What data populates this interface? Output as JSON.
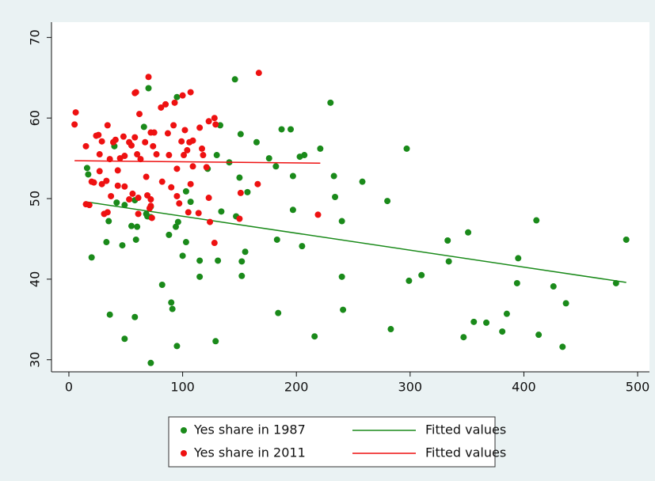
{
  "chart_data": {
    "type": "scatter",
    "grid": false,
    "xlim": [
      -15.3,
      510.4
    ],
    "ylim": [
      28.5,
      71.9
    ],
    "xticks": [
      0,
      100,
      200,
      300,
      400,
      500
    ],
    "yticks": [
      30,
      40,
      50,
      60,
      70
    ],
    "legend": "bottom",
    "series": [
      {
        "name": "Yes share in 1987",
        "type": "scatter",
        "color": "#1a8a1a",
        "x": [
          16,
          17,
          20,
          33,
          35,
          36,
          40,
          42,
          47,
          49,
          49,
          55,
          58,
          58,
          60,
          59,
          66,
          70,
          68,
          69,
          72,
          72,
          72,
          82,
          88,
          90,
          91,
          94,
          95,
          95,
          96,
          100,
          103,
          103,
          107,
          115,
          115,
          122,
          129,
          130,
          131,
          133,
          134,
          141,
          146,
          147,
          150,
          151,
          152,
          152,
          155,
          157,
          165,
          176,
          182,
          183,
          184,
          187,
          195,
          197,
          197,
          203,
          205,
          207,
          216,
          221,
          230,
          233,
          234,
          240,
          240,
          241,
          258,
          280,
          283,
          297,
          299,
          310,
          333,
          334,
          347,
          351,
          356,
          367,
          381,
          385,
          394,
          395,
          411,
          413,
          426,
          434,
          437,
          481,
          490
        ],
        "values": [
          53.8,
          53,
          42.7,
          44.6,
          47.2,
          35.6,
          56.5,
          49.5,
          44.2,
          32.6,
          49.2,
          46.6,
          35.3,
          49.8,
          46.5,
          44.9,
          58.9,
          63.7,
          48.1,
          47.8,
          29.6,
          49,
          47.7,
          39.3,
          45.5,
          37.1,
          36.3,
          46.5,
          62.6,
          31.7,
          47.1,
          42.9,
          50.9,
          44.6,
          49.6,
          42.3,
          40.3,
          53.7,
          32.3,
          55.4,
          42.3,
          59.1,
          48.4,
          54.5,
          64.8,
          47.8,
          52.6,
          58,
          42.2,
          40.4,
          43.4,
          50.8,
          57,
          55,
          54,
          44.9,
          35.8,
          58.6,
          58.6,
          52.8,
          48.6,
          55.2,
          44.1,
          55.4,
          32.9,
          56.2,
          61.9,
          52.8,
          50.2,
          47.2,
          40.3,
          36.2,
          52.1,
          49.7,
          33.8,
          56.2,
          39.8,
          40.5,
          44.8,
          42.2,
          32.8,
          45.8,
          34.7,
          34.6,
          33.5,
          35.7,
          39.5,
          42.6,
          47.3,
          33.1,
          39.1,
          31.6,
          37,
          39.5,
          44.9
        ]
      },
      {
        "name": "Fitted values",
        "type": "line",
        "color": "#1a8a1a",
        "x": [
          15,
          490
        ],
        "values": [
          49.6,
          39.6
        ]
      },
      {
        "name": "Yes share in 2011",
        "type": "scatter",
        "color": "#ee1111",
        "x": [
          6,
          5,
          15,
          15,
          18,
          20,
          22,
          24,
          26,
          27,
          27,
          29,
          29,
          31,
          33,
          34,
          34,
          36,
          37,
          39,
          41,
          43,
          43,
          45,
          48,
          49,
          49,
          53,
          53,
          55,
          56,
          58,
          58,
          59,
          60,
          61,
          61,
          62,
          63,
          67,
          68,
          69,
          70,
          71,
          72,
          72,
          72,
          73,
          74,
          75,
          77,
          81,
          82,
          85,
          87,
          88,
          90,
          92,
          93,
          95,
          95,
          97,
          99,
          100,
          101,
          102,
          104,
          105,
          106,
          107,
          107,
          109,
          109,
          114,
          115,
          117,
          118,
          121,
          123,
          123,
          124,
          128,
          128,
          129,
          150,
          151,
          167,
          166,
          219
        ],
        "values": [
          60.7,
          59.2,
          56.5,
          49.3,
          49.2,
          52.1,
          52,
          57.8,
          57.9,
          55.5,
          53.4,
          51.8,
          57.1,
          48.1,
          52.2,
          48.3,
          59.1,
          54.9,
          50.3,
          57,
          57.3,
          53.5,
          51.6,
          55,
          57.7,
          51.5,
          55.3,
          57,
          49.9,
          56.6,
          50.6,
          63.1,
          57.6,
          63.2,
          55.5,
          48.1,
          50.1,
          60.5,
          54.9,
          57,
          52.7,
          50.4,
          65.1,
          48.8,
          49.1,
          58.2,
          49.9,
          47.6,
          56.5,
          58.2,
          55.5,
          61.3,
          52.1,
          61.7,
          58.1,
          55.4,
          51.4,
          59.1,
          61.9,
          53.7,
          50.3,
          49.4,
          57.1,
          62.8,
          55.4,
          58.5,
          56,
          48.3,
          57,
          63.2,
          51.8,
          54,
          57.2,
          48.2,
          58.8,
          56.2,
          55.4,
          53.9,
          50.1,
          59.6,
          47.1,
          60,
          44.5,
          59.2,
          47.5,
          50.7,
          65.6,
          51.8,
          48
        ]
      },
      {
        "name": "Fitted values",
        "type": "line",
        "color": "#ee1111",
        "x": [
          5,
          221
        ],
        "values": [
          54.7,
          54.4
        ]
      }
    ]
  }
}
